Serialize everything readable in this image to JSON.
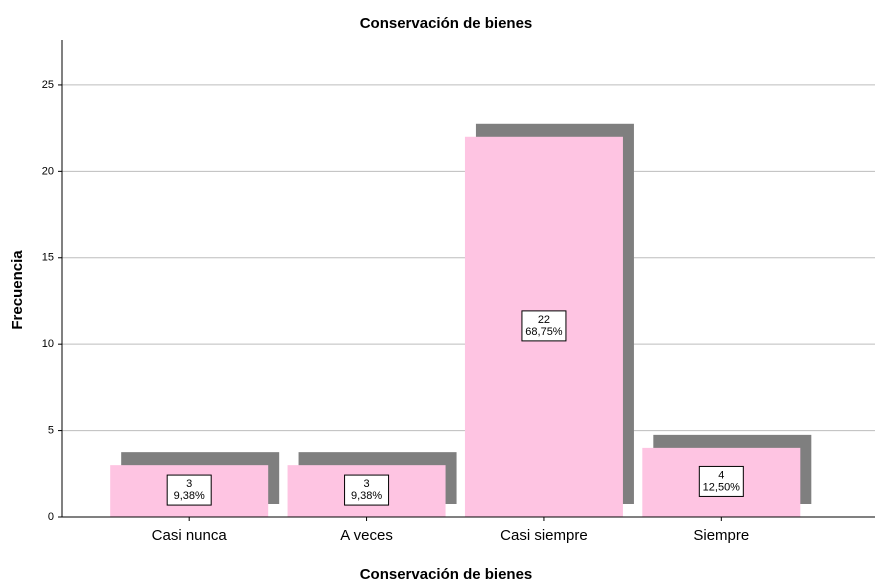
{
  "chart_data": {
    "type": "bar",
    "title": "Conservación de bienes",
    "x_label": "Conservación de bienes",
    "y_label": "Frecuencia",
    "categories": [
      "Casi nunca",
      "A veces",
      "Casi siempre",
      "Siempre"
    ],
    "values": [
      3,
      3,
      22,
      4
    ],
    "percentages": [
      9.38,
      9.38,
      68.75,
      12.5
    ],
    "percentage_labels": [
      "9,38%",
      "9,38%",
      "68,75%",
      "12,50%"
    ],
    "color": "#fec4e2",
    "shadow_color": "#7f7f7f",
    "ylim": [
      0,
      27.6
    ],
    "yticks": [
      0,
      5,
      10,
      15,
      20,
      25
    ],
    "grid": true
  }
}
